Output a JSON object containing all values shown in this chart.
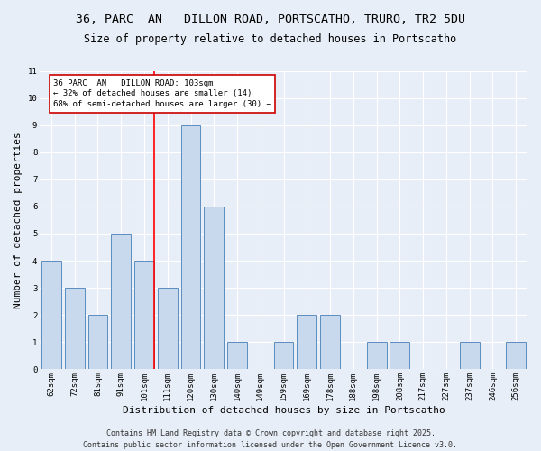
{
  "title_line1": "36, PARC  AN   DILLON ROAD, PORTSCATHO, TRURO, TR2 5DU",
  "title_line2": "Size of property relative to detached houses in Portscatho",
  "xlabel": "Distribution of detached houses by size in Portscatho",
  "ylabel": "Number of detached properties",
  "categories": [
    "62sqm",
    "72sqm",
    "81sqm",
    "91sqm",
    "101sqm",
    "111sqm",
    "120sqm",
    "130sqm",
    "140sqm",
    "149sqm",
    "159sqm",
    "169sqm",
    "178sqm",
    "188sqm",
    "198sqm",
    "208sqm",
    "217sqm",
    "227sqm",
    "237sqm",
    "246sqm",
    "256sqm"
  ],
  "values": [
    4,
    3,
    2,
    5,
    4,
    3,
    9,
    6,
    1,
    0,
    1,
    2,
    2,
    0,
    1,
    1,
    0,
    0,
    1,
    0,
    1
  ],
  "bar_color": "#c9d9ed",
  "bar_edge_color": "#5b8dc0",
  "red_line_index": 4,
  "red_line_label": "36 PARC  AN   DILLON ROAD: 103sqm",
  "annotation_line2": "← 32% of detached houses are smaller (14)",
  "annotation_line3": "68% of semi-detached houses are larger (30) →",
  "annotation_box_color": "#ffffff",
  "annotation_box_edge": "#cc0000",
  "ylim": [
    0,
    11
  ],
  "yticks": [
    0,
    1,
    2,
    3,
    4,
    5,
    6,
    7,
    8,
    9,
    10,
    11
  ],
  "footer_line1": "Contains HM Land Registry data © Crown copyright and database right 2025.",
  "footer_line2": "Contains public sector information licensed under the Open Government Licence v3.0.",
  "background_color": "#e8eef7",
  "grid_color": "#ffffff",
  "title_fontsize": 9.5,
  "subtitle_fontsize": 8.5,
  "axis_label_fontsize": 8,
  "tick_fontsize": 6.5,
  "footer_fontsize": 6,
  "annot_fontsize": 6.5
}
